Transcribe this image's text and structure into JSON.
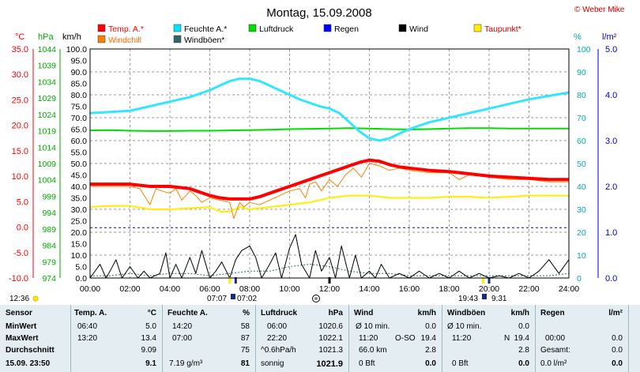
{
  "title": "Montag, 15.09.2008",
  "copyright": "© Weber Mike",
  "axis_labels": {
    "temp": "°C",
    "hpa": "hPa",
    "kmh": "km/h",
    "pct": "%",
    "lm2": "l/m²"
  },
  "legend": [
    {
      "label": "Temp. A.*",
      "color": "#ff0000"
    },
    {
      "label": "Feuchte A.*",
      "color": "#00e5ff"
    },
    {
      "label": "Luftdruck",
      "color": "#00dd00"
    },
    {
      "label": "Regen",
      "color": "#0000ff"
    },
    {
      "label": "Wind",
      "color": "#000000"
    },
    {
      "label": "Taupunkt*",
      "color": "#ffee00"
    },
    {
      "label": "Windchill",
      "color": "#ff8000"
    },
    {
      "label": "Windböen*",
      "color": "#336666"
    }
  ],
  "sun_markers": {
    "left_time": "12:36",
    "sunrise": "07:07",
    "moon_rise": "07:02",
    "sunset": "19:43",
    "moon_set": "9:31"
  },
  "chart_data": {
    "type": "line",
    "x_ticks": [
      "00:00",
      "02:00",
      "04:00",
      "06:00",
      "08:00",
      "10:00",
      "12:00",
      "14:00",
      "16:00",
      "18:00",
      "20:00",
      "22:00",
      "24:00"
    ],
    "xlim": [
      0,
      24
    ],
    "y_axes": {
      "temp_ticks": [
        "35.0",
        "30.0",
        "25.0",
        "20.0",
        "15.0",
        "10.0",
        "5.0",
        "0.0",
        "-5.0",
        "-10.0"
      ],
      "hpa_ticks": [
        "1044",
        "1039",
        "1034",
        "1029",
        "1024",
        "1019",
        "1014",
        "1009",
        "1004",
        "999",
        "994",
        "989",
        "984",
        "979",
        "974"
      ],
      "kmh_ticks": [
        "100.0",
        "95.0",
        "90.0",
        "85.0",
        "80.0",
        "75.0",
        "70.0",
        "65.0",
        "60.0",
        "55.0",
        "50.0",
        "45.0",
        "40.0",
        "35.0",
        "30.0",
        "25.0",
        "20.0",
        "15.0",
        "10.0",
        "5.0",
        "0.0"
      ],
      "pct_ticks": [
        "100",
        "90",
        "80",
        "70",
        "60",
        "50",
        "40",
        "30",
        "20",
        "10",
        "0"
      ],
      "lm2_ticks": [
        "5.0",
        "4.0",
        "3.0",
        "2.0",
        "1.0",
        "0.0"
      ],
      "kmh_range": [
        0,
        100
      ],
      "temp_range": [
        -10,
        35
      ],
      "pct_range": [
        0,
        100
      ],
      "hpa_range": [
        974,
        1046
      ]
    },
    "series": [
      {
        "name": "Temp. A.*",
        "color": "#ff0000",
        "width": 4,
        "axis": "kmh",
        "x": [
          0,
          1,
          2,
          2.5,
          3,
          4,
          5,
          5.5,
          6,
          6.5,
          7,
          7.5,
          8,
          8.5,
          9,
          9.5,
          10,
          10.5,
          11,
          11.5,
          12,
          12.5,
          13,
          13.5,
          14,
          14.5,
          15,
          15.5,
          16,
          17,
          18,
          19,
          20,
          21,
          22,
          23,
          24
        ],
        "y": [
          41,
          41,
          41,
          40.5,
          40,
          40,
          39,
          37.5,
          36,
          35,
          34.5,
          34.5,
          34.5,
          35.5,
          37,
          38.5,
          40,
          41.5,
          43,
          44.5,
          46,
          47.5,
          49,
          50.5,
          51.5,
          51,
          49.5,
          48.5,
          48,
          47,
          46.5,
          45.5,
          44.5,
          44,
          43.5,
          43,
          43
        ]
      },
      {
        "name": "Windchill",
        "color": "#ff8000",
        "width": 1,
        "axis": "kmh",
        "x": [
          0,
          1,
          2,
          2.5,
          3,
          3.3,
          3.6,
          4,
          4.3,
          4.6,
          5,
          5.3,
          5.6,
          6,
          6.5,
          7,
          7.2,
          7.5,
          7.7,
          8,
          8.5,
          9,
          9.5,
          10,
          10.5,
          10.8,
          11,
          11.3,
          11.6,
          12,
          12.4,
          12.8,
          13.2,
          13.6,
          14,
          14.5,
          15,
          15.5,
          16,
          17,
          18,
          18.5,
          19,
          20,
          21,
          22,
          23,
          24
        ],
        "y": [
          40,
          40,
          40,
          39,
          32,
          39,
          38,
          37,
          39,
          34,
          38,
          36,
          33,
          35,
          34,
          33,
          26,
          33,
          31,
          33,
          32,
          34,
          36,
          38,
          39,
          35,
          41,
          42,
          38,
          43,
          40,
          45,
          48,
          44,
          50,
          49,
          47,
          48,
          47,
          46,
          46,
          43,
          45,
          44,
          43,
          43,
          42,
          42
        ]
      },
      {
        "name": "Feuchte A.*",
        "color": "#33e5ff",
        "width": 3,
        "axis": "pct",
        "x": [
          0,
          1,
          2,
          3,
          4,
          5,
          6,
          6.5,
          7,
          7.5,
          8,
          8.5,
          9,
          9.5,
          10,
          10.5,
          11,
          11.5,
          12,
          12.5,
          13,
          13.5,
          14,
          14.5,
          15,
          15.5,
          16,
          17,
          18,
          19,
          20,
          21,
          22,
          23,
          24
        ],
        "y": [
          72,
          72.5,
          73,
          75,
          77,
          79,
          82,
          84,
          86,
          87,
          87,
          86,
          84,
          82,
          80,
          78,
          76.5,
          75,
          74,
          72,
          68,
          64,
          61,
          60,
          61,
          63,
          65,
          68,
          70,
          72,
          74,
          76,
          78,
          79.5,
          81
        ]
      },
      {
        "name": "Luftdruck",
        "color": "#00dd00",
        "width": 2,
        "axis": "hpa",
        "x": [
          0,
          1,
          2,
          3,
          4,
          5,
          6,
          7,
          8,
          9,
          10,
          11,
          12,
          13,
          14,
          15,
          16,
          17,
          18,
          19,
          20,
          21,
          22,
          23,
          24
        ],
        "y": [
          1020.4,
          1020.5,
          1020.3,
          1020.2,
          1020.2,
          1020.3,
          1020.3,
          1020.4,
          1020.5,
          1020.6,
          1020.8,
          1020.9,
          1021.0,
          1021.1,
          1021.0,
          1020.8,
          1020.7,
          1020.8,
          1021.0,
          1021.1,
          1021.1,
          1021.0,
          1021.0,
          1021.0,
          1021.0
        ]
      },
      {
        "name": "Taupunkt*",
        "color": "#ffee00",
        "width": 2,
        "axis": "kmh",
        "x": [
          0,
          1,
          2,
          3,
          4,
          5,
          6,
          6.5,
          7,
          7.5,
          8,
          9,
          10,
          11,
          12,
          13,
          14,
          15,
          16,
          17,
          18,
          19,
          20,
          21,
          22,
          23,
          24
        ],
        "y": [
          31,
          31.5,
          31.5,
          30,
          30,
          30.5,
          31,
          29,
          29,
          31,
          30,
          31,
          32,
          33,
          35,
          36,
          36,
          35,
          35,
          35,
          35.5,
          35.5,
          35,
          35.5,
          36,
          36,
          36
        ]
      },
      {
        "name": "Wind",
        "color": "#000000",
        "width": 1,
        "axis": "kmh",
        "x": [
          0,
          0.5,
          0.8,
          1,
          1.3,
          1.6,
          2,
          2.4,
          2.7,
          3,
          3.5,
          3.8,
          4,
          4.3,
          4.6,
          5,
          5.3,
          5.6,
          6,
          6.3,
          6.6,
          7,
          7.3,
          7.6,
          8,
          8.3,
          8.6,
          9,
          9.3,
          9.6,
          10,
          10.3,
          10.6,
          11,
          11.3,
          11.6,
          12,
          12.3,
          12.6,
          13,
          13.3,
          13.6,
          14,
          14.3,
          14.6,
          15,
          15.5,
          16,
          16.5,
          17,
          17.5,
          18,
          18.5,
          19,
          19.5,
          20,
          20.5,
          21,
          21.5,
          22,
          22.5,
          23,
          23.5,
          24
        ],
        "y": [
          0,
          6,
          0,
          3,
          8,
          0,
          5,
          0,
          3,
          0,
          2,
          11,
          0,
          6,
          0,
          9,
          2,
          12,
          0,
          3,
          7,
          0,
          8,
          12,
          14,
          9,
          0,
          6,
          11,
          0,
          13,
          19,
          6,
          0,
          12,
          3,
          9,
          0,
          14,
          0,
          10,
          0,
          3,
          0,
          6,
          0,
          2,
          0,
          3,
          0,
          2,
          0,
          3,
          0,
          2,
          0,
          1,
          0,
          2,
          0,
          3,
          8,
          2,
          8
        ]
      },
      {
        "name": "Windböen*",
        "color": "#336666",
        "width": 1,
        "axis": "kmh",
        "x": [
          0,
          1,
          2,
          3,
          4,
          5,
          6,
          7,
          8,
          9,
          10,
          11,
          12,
          13,
          14,
          15,
          16,
          17,
          18,
          19,
          20,
          21,
          22,
          23,
          24
        ],
        "y": [
          1,
          1,
          2,
          1,
          2,
          2,
          1,
          2,
          3,
          3,
          5,
          6,
          5,
          3,
          2,
          2,
          1,
          1,
          1,
          1,
          1,
          1,
          1,
          1,
          2
        ]
      }
    ],
    "rain_level": 22
  },
  "table": {
    "sensor_col": {
      "header": "Sensor",
      "min": "MinWert",
      "max": "MaxWert",
      "avg": "Durchschnitt",
      "now": "15.09. 23:50"
    },
    "temp": {
      "header": "Temp. A.",
      "unit": "°C",
      "min_time": "06:40",
      "min": "5.0",
      "max_time": "13:20",
      "max": "13.4",
      "avg": "9.09",
      "now": "9.1"
    },
    "hum": {
      "header": "Feuchte A.",
      "unit": "%",
      "min_time": "14:20",
      "min": "58",
      "max_time": "07:00",
      "max": "87",
      "avg": "75",
      "now_extra": "7.19 g/m³",
      "now": "81"
    },
    "press": {
      "header": "Luftdruck",
      "unit": "hPa",
      "min_time": "06:00",
      "min": "1020.6",
      "max_time": "22:20",
      "max": "1022.1",
      "avg_label": "^0.6hPa/h",
      "avg": "1021.3",
      "now_label": "sonnig",
      "now": "1021.9"
    },
    "wind": {
      "header": "Wind",
      "unit": "km/h",
      "min_label": "Ø 10 min.",
      "min": "0.0",
      "max_time": "11:20",
      "max_dir": "O-SO",
      "max": "19.4",
      "avg_label": "66.0 km",
      "avg": "2.8",
      "now_label": "0 Bft",
      "now": "0.0"
    },
    "gust": {
      "header": "Windböen",
      "unit": "km/h",
      "min_label": "Ø 10 min.",
      "min": "0.0",
      "max_time": "11:20",
      "max_dir": "N",
      "max": "19.4",
      "avg": "2.8",
      "now_label": "0 Bft",
      "now": "0.0"
    },
    "rain": {
      "header": "Regen",
      "unit": "l/m²",
      "max_time": "00:00",
      "max": "0.0",
      "avg_label": "Gesamt:",
      "avg": "0.0",
      "now_label": "0.0 l/m²",
      "now": "0.0"
    }
  }
}
